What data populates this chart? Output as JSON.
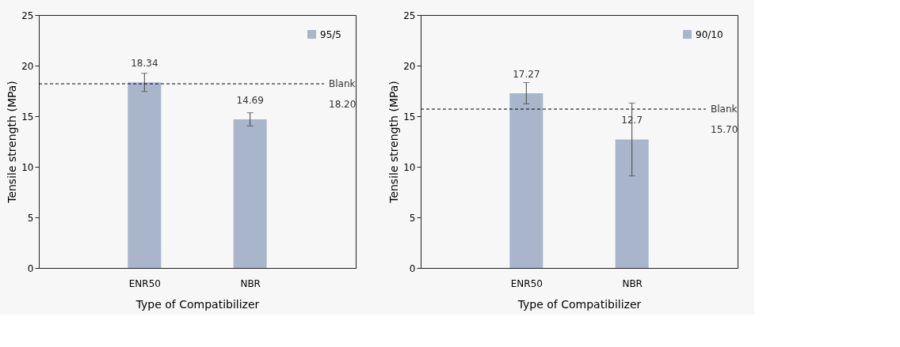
{
  "chart_data": [
    {
      "type": "bar",
      "xlabel": "Type of Compatibilizer",
      "ylabel": "Tensile strength (MPa)",
      "categories": [
        "ENR50",
        "NBR"
      ],
      "series": [
        {
          "name": "95/5",
          "color": "#a9b5cb",
          "values": [
            18.34,
            14.69
          ],
          "errors": [
            0.9,
            0.65
          ]
        }
      ],
      "data_labels": true,
      "ylim": [
        0,
        25
      ],
      "yticks": [
        0,
        5,
        10,
        15,
        20,
        25
      ],
      "grid": false,
      "legend": "top right",
      "ref_lines": [
        {
          "axis": "y",
          "value": 18.2,
          "label": "Blank",
          "color": "#000000",
          "line_style": "dashed"
        }
      ],
      "annotations": [
        "18.20"
      ]
    },
    {
      "type": "bar",
      "xlabel": "Type of Compatibilizer",
      "ylabel": "Tensile strength (MPa)",
      "categories": [
        "ENR50",
        "NBR"
      ],
      "series": [
        {
          "name": "90/10",
          "color": "#a9b5cb",
          "values": [
            17.27,
            12.7
          ],
          "errors": [
            1.05,
            3.6
          ]
        }
      ],
      "data_labels": true,
      "ylim": [
        0,
        25
      ],
      "yticks": [
        0,
        5,
        10,
        15,
        20,
        25
      ],
      "grid": false,
      "legend": "top right",
      "ref_lines": [
        {
          "axis": "y",
          "value": 15.7,
          "label": "Blank",
          "color": "#000000",
          "line_style": "dashed"
        }
      ],
      "annotations": [
        "15.70"
      ]
    }
  ]
}
